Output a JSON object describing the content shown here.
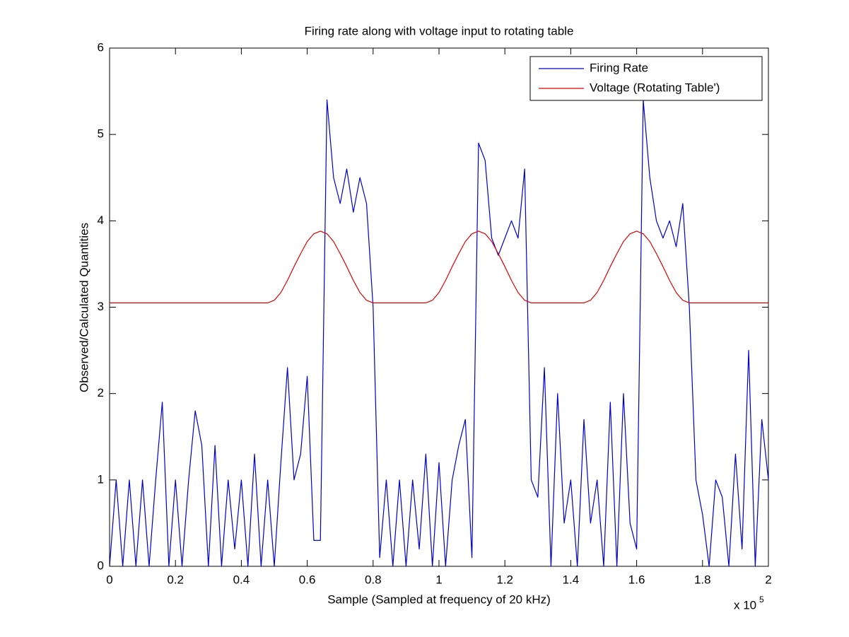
{
  "chart_data": {
    "type": "line",
    "title": "Firing rate along with voltage input to rotating table",
    "x_label": "Sample (Sampled at frequency of 20 kHz)",
    "y_label": "Observed/Calculated Quantities",
    "x_scale_base": "x 10",
    "x_scale_exponent": "5",
    "xlim": [
      0,
      2
    ],
    "ylim": [
      0,
      6
    ],
    "xticks": [
      0,
      0.2,
      0.4,
      0.6,
      0.8,
      1,
      1.2,
      1.4,
      1.6,
      1.8,
      2
    ],
    "yticks": [
      0,
      1,
      2,
      3,
      4,
      5,
      6
    ],
    "legend_position": "upper-right",
    "x": [
      0,
      0.02,
      0.04,
      0.06,
      0.08,
      0.1,
      0.12,
      0.14,
      0.16,
      0.18,
      0.2,
      0.22,
      0.24,
      0.26,
      0.28,
      0.3,
      0.32,
      0.34,
      0.36,
      0.38,
      0.4,
      0.42,
      0.44,
      0.46,
      0.48,
      0.5,
      0.52,
      0.54,
      0.56,
      0.58,
      0.6,
      0.62,
      0.64,
      0.66,
      0.68,
      0.7,
      0.72,
      0.74,
      0.76,
      0.78,
      0.8,
      0.82,
      0.84,
      0.86,
      0.88,
      0.9,
      0.92,
      0.94,
      0.96,
      0.98,
      1,
      1.02,
      1.04,
      1.06,
      1.08,
      1.1,
      1.12,
      1.14,
      1.16,
      1.18,
      1.2,
      1.22,
      1.24,
      1.26,
      1.28,
      1.3,
      1.32,
      1.34,
      1.36,
      1.38,
      1.4,
      1.42,
      1.44,
      1.46,
      1.48,
      1.5,
      1.52,
      1.54,
      1.56,
      1.58,
      1.6,
      1.62,
      1.64,
      1.66,
      1.68,
      1.7,
      1.72,
      1.74,
      1.76,
      1.78,
      1.8,
      1.82,
      1.84,
      1.86,
      1.88,
      1.9,
      1.92,
      1.94,
      1.96,
      1.98,
      2
    ],
    "series": [
      {
        "name": "Firing Rate",
        "color": "#0000cc",
        "values": [
          0,
          1.0,
          0,
          1.0,
          0,
          1.0,
          0,
          1.0,
          1.9,
          0,
          1.0,
          0,
          1.0,
          1.8,
          1.4,
          0,
          1.4,
          0,
          1.0,
          0.2,
          1.0,
          0,
          1.3,
          0,
          1.0,
          0,
          1.2,
          2.3,
          1.0,
          1.3,
          2.2,
          0.3,
          0.3,
          5.4,
          4.5,
          4.2,
          4.6,
          4.1,
          4.5,
          4.2,
          3.0,
          0.1,
          1.0,
          0,
          1.0,
          0,
          1.0,
          0.2,
          1.3,
          0,
          1.2,
          0,
          1.0,
          1.4,
          1.7,
          0.1,
          4.9,
          4.7,
          3.8,
          3.6,
          3.8,
          4.0,
          3.8,
          4.6,
          1.0,
          0.8,
          2.3,
          0,
          2.0,
          0.5,
          1.0,
          0,
          1.7,
          0.5,
          1.0,
          0,
          1.9,
          0,
          2.0,
          0.5,
          0.2,
          5.4,
          4.5,
          4.0,
          3.8,
          4.0,
          3.7,
          4.2,
          3.0,
          1.0,
          0.6,
          0,
          1.0,
          0.8,
          0,
          1.3,
          0.2,
          2.5,
          0,
          1.7,
          1.0
        ]
      },
      {
        "name": "Voltage (Rotating Table')",
        "color": "#dd0000",
        "values": [
          3.05,
          3.05,
          3.05,
          3.05,
          3.05,
          3.05,
          3.05,
          3.05,
          3.05,
          3.05,
          3.05,
          3.05,
          3.05,
          3.05,
          3.05,
          3.05,
          3.05,
          3.05,
          3.05,
          3.05,
          3.05,
          3.05,
          3.05,
          3.05,
          3.05,
          3.08,
          3.17,
          3.31,
          3.47,
          3.62,
          3.76,
          3.85,
          3.88,
          3.85,
          3.76,
          3.62,
          3.47,
          3.31,
          3.17,
          3.08,
          3.05,
          3.05,
          3.05,
          3.05,
          3.05,
          3.05,
          3.05,
          3.05,
          3.05,
          3.08,
          3.17,
          3.31,
          3.47,
          3.62,
          3.76,
          3.85,
          3.88,
          3.85,
          3.76,
          3.62,
          3.47,
          3.31,
          3.17,
          3.08,
          3.05,
          3.05,
          3.05,
          3.05,
          3.05,
          3.05,
          3.05,
          3.05,
          3.05,
          3.08,
          3.17,
          3.31,
          3.47,
          3.62,
          3.76,
          3.85,
          3.88,
          3.85,
          3.76,
          3.62,
          3.47,
          3.31,
          3.17,
          3.08,
          3.05,
          3.05,
          3.05,
          3.05,
          3.05,
          3.05,
          3.05,
          3.05,
          3.05,
          3.05,
          3.05,
          3.05,
          3.05
        ]
      }
    ]
  }
}
